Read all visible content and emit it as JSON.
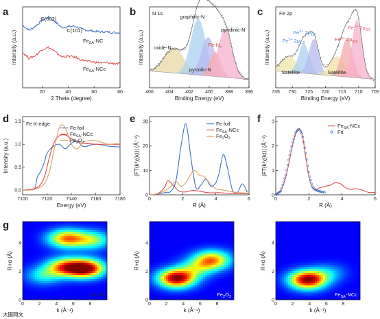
{
  "panels": {
    "a": {
      "letter": "a",
      "xlabel": "2 Theta (degree)",
      "ylabel": "Intensity (a.u.)",
      "xticks": [
        "20",
        "40",
        "60",
        "80"
      ],
      "peak_labels": [
        "C(002)",
        "C(101)"
      ],
      "legend": [
        {
          "name": "Fe",
          "sub": "SA",
          "suffix": "-NC",
          "color": "#3a6fc4"
        },
        {
          "name": "Fe",
          "sub": "SA",
          "suffix": "-NCc",
          "color": "#e04a4a"
        }
      ],
      "chart_data": {
        "type": "line",
        "xlim": [
          5,
          80
        ],
        "series": [
          {
            "name": "FeSA-NC",
            "x": [
              5,
              10,
              15,
              20,
              25,
              30,
              35,
              40,
              45,
              50,
              55,
              60,
              65,
              70,
              75,
              80
            ],
            "y": [
              0.85,
              0.78,
              0.84,
              0.92,
              0.96,
              0.9,
              0.82,
              0.83,
              0.84,
              0.8,
              0.78,
              0.77,
              0.76,
              0.76,
              0.75,
              0.75
            ]
          },
          {
            "name": "FeSA-NCc",
            "x": [
              5,
              10,
              15,
              20,
              25,
              30,
              35,
              40,
              45,
              50,
              55,
              60,
              65,
              70,
              75,
              80
            ],
            "y": [
              0.48,
              0.4,
              0.44,
              0.52,
              0.55,
              0.49,
              0.42,
              0.43,
              0.42,
              0.38,
              0.36,
              0.35,
              0.34,
              0.34,
              0.33,
              0.33
            ]
          }
        ]
      }
    },
    "b": {
      "letter": "b",
      "title": "N 1s",
      "xlabel": "Binding Energy (eV)",
      "ylabel": "Intensity (a.u.)",
      "xticks": [
        "406",
        "404",
        "402",
        "400",
        "398",
        "396"
      ],
      "labels": [
        {
          "text": "graphitic-N",
          "color": "#4a90d9"
        },
        {
          "text": "pyridinic-N",
          "color": "#e05a8a"
        },
        {
          "text": "oxide-N",
          "color": "#b8a040"
        },
        {
          "text": "Fe-N",
          "sub": "x",
          "color": "#d04040"
        },
        {
          "text": "pyrrolic-N",
          "color": "#6a70d0"
        }
      ],
      "chart_data": {
        "type": "area",
        "xlim": [
          406,
          396
        ],
        "components": [
          {
            "name": "oxide-N",
            "center": 403.5,
            "color": "#e8d9a0"
          },
          {
            "name": "graphitic-N",
            "center": 401.1,
            "color": "#a9d0f2"
          },
          {
            "name": "pyrrolic-N",
            "center": 400.1,
            "color": "#b7b9ee"
          },
          {
            "name": "Fe-Nx",
            "center": 399.4,
            "color": "#f4a9a9"
          },
          {
            "name": "pyridinic-N",
            "center": 398.4,
            "color": "#f7b0cc"
          }
        ]
      }
    },
    "c": {
      "letter": "c",
      "title": "Fe 2p",
      "xlabel": "Binding Energy (eV)",
      "ylabel": "Intensity (a.u.)",
      "xticks": [
        "735",
        "730",
        "725",
        "720",
        "715",
        "710",
        "705"
      ],
      "labels": [
        {
          "pre": "Fe",
          "sup": "3+",
          "mid": " 2p",
          "sub": "1/2",
          "color": "#4a90d9"
        },
        {
          "pre": "Fe",
          "sup": "2+",
          "mid": " 2p",
          "sub": "1/2",
          "color": "#4a90d9"
        },
        {
          "pre": "Fe",
          "sup": "3+",
          "mid": " 2p",
          "sub": "3/2",
          "color": "#d04040"
        },
        {
          "pre": "Fe",
          "sup": "2+",
          "mid": " 2p",
          "sub": "3/2",
          "color": "#e05a8a"
        },
        {
          "text": "Satellite",
          "color": "#c8a000"
        },
        {
          "text": "Satellite",
          "color": "#c8a000"
        }
      ],
      "chart_data": {
        "type": "area",
        "xlim": [
          735,
          705
        ],
        "components": [
          {
            "name": "Satellite",
            "center": 731.0,
            "color": "#efe3a8"
          },
          {
            "name": "Fe3+ 2p1/2",
            "center": 726.5,
            "color": "#a9d0f2"
          },
          {
            "name": "Fe2+ 2p1/2",
            "center": 723.5,
            "color": "#b7b9ee"
          },
          {
            "name": "Satellite",
            "center": 716.5,
            "color": "#f1e2a6"
          },
          {
            "name": "Fe3+ 2p3/2",
            "center": 713.5,
            "color": "#f4a9a9"
          },
          {
            "name": "Fe2+ 2p3/2",
            "center": 710.5,
            "color": "#f7b0cc"
          }
        ]
      }
    },
    "d": {
      "letter": "d",
      "title": "Fe K-edge",
      "xlabel": "Energy (eV)",
      "ylabel": "Intensity (a.u.)",
      "xticks": [
        "7100",
        "7120",
        "7140",
        "7160",
        "7180"
      ],
      "yticks": [
        "0.0",
        "0.5",
        "1.0",
        "1.5"
      ],
      "legend": [
        {
          "text": "Fe foil",
          "color": "#3a6fc4"
        },
        {
          "pre": "Fe",
          "sub": "SA",
          "post": "-NCc",
          "color": "#e04a4a"
        },
        {
          "pre": "Fe",
          "sub": "2",
          "post": "O",
          "sub2": "3",
          "color": "#d9a060"
        }
      ],
      "chart_data": {
        "type": "line",
        "xlim": [
          7100,
          7180
        ],
        "ylim": [
          -0.1,
          1.6
        ],
        "series": [
          {
            "name": "Fe foil",
            "x": [
              7100,
              7105,
              7110,
              7112,
              7115,
              7118,
              7120,
              7125,
              7130,
              7135,
              7140,
              7145,
              7150,
              7160,
              7170,
              7180
            ],
            "y": [
              0.0,
              0.01,
              0.05,
              0.28,
              0.42,
              0.62,
              0.8,
              0.95,
              1.0,
              0.9,
              1.02,
              1.07,
              0.95,
              1.0,
              0.96,
              0.94
            ]
          },
          {
            "name": "FeSA-NCc",
            "x": [
              7100,
              7105,
              7110,
              7114,
              7118,
              7122,
              7126,
              7130,
              7135,
              7140,
              7145,
              7150,
              7160,
              7170,
              7180
            ],
            "y": [
              0.0,
              0.01,
              0.04,
              0.1,
              0.3,
              0.72,
              1.05,
              1.18,
              1.2,
              1.12,
              1.05,
              1.02,
              1.0,
              1.0,
              0.99
            ]
          },
          {
            "name": "Fe2O3",
            "x": [
              7100,
              7105,
              7110,
              7114,
              7118,
              7122,
              7126,
              7130,
              7133,
              7136,
              7140,
              7145,
              7150,
              7160,
              7170,
              7180
            ],
            "y": [
              0.0,
              0.0,
              0.02,
              0.06,
              0.15,
              0.4,
              0.9,
              1.35,
              1.42,
              1.3,
              1.0,
              0.9,
              1.05,
              1.08,
              1.0,
              1.02
            ]
          }
        ]
      }
    },
    "e": {
      "letter": "e",
      "xlabel": "R (Å)",
      "ylabel": "|FT(k³χ(k))| (Å⁻⁴)",
      "xticks": [
        "0",
        "2",
        "4",
        "6"
      ],
      "yticks": [
        "0",
        "10",
        "20",
        "30"
      ],
      "legend": [
        {
          "text": "Fe foil",
          "color": "#3a6fc4"
        },
        {
          "pre": "Fe",
          "sub": "SA",
          "post": "-NCc",
          "color": "#e04a4a"
        },
        {
          "pre": "Fe",
          "sub": "2",
          "post": "O",
          "sub2": "3",
          "color": "#d9a060"
        }
      ],
      "chart_data": {
        "type": "line",
        "xlim": [
          0,
          6
        ],
        "ylim": [
          0,
          32
        ],
        "series": [
          {
            "name": "Fe foil",
            "x": [
              0,
              0.5,
              1.0,
              1.3,
              1.6,
              1.9,
              2.2,
              2.5,
              2.8,
              3.1,
              3.4,
              3.7,
              4.0,
              4.2,
              4.45,
              4.7,
              5.0,
              5.3,
              5.6,
              5.9
            ],
            "y": [
              0,
              0.3,
              1.0,
              1.5,
              6.0,
              20.0,
              29.0,
              15.0,
              3.0,
              4.0,
              6.5,
              3.5,
              5.0,
              9.0,
              16.5,
              11.0,
              2.0,
              1.0,
              4.5,
              1.0
            ]
          },
          {
            "name": "FeSA-NCc",
            "x": [
              0,
              0.5,
              0.9,
              1.1,
              1.4,
              1.8,
              2.2,
              2.6,
              3.0,
              3.4,
              3.8,
              4.2,
              4.6,
              5.0,
              5.5,
              6.0
            ],
            "y": [
              0,
              0.5,
              3.0,
              5.8,
              4.0,
              1.5,
              1.2,
              1.8,
              1.5,
              1.0,
              0.8,
              0.9,
              0.7,
              0.6,
              0.5,
              0.4
            ]
          },
          {
            "name": "Fe2O3",
            "x": [
              0,
              0.5,
              1.0,
              1.3,
              1.6,
              1.9,
              2.2,
              2.5,
              2.75,
              3.0,
              3.3,
              3.6,
              4.0,
              4.4,
              4.8,
              5.2,
              5.6,
              6.0
            ],
            "y": [
              0,
              0.5,
              2.0,
              3.5,
              5.5,
              3.5,
              5.0,
              8.5,
              10.0,
              8.0,
              7.5,
              5.0,
              2.5,
              2.0,
              1.5,
              1.0,
              0.8,
              0.5
            ]
          }
        ]
      }
    },
    "f": {
      "letter": "f",
      "xlabel": "R (Å)",
      "ylabel": "|FT(k³χ(k))| (Å⁻⁴)",
      "xticks": [
        "0",
        "2",
        "4",
        "6"
      ],
      "yticks": [
        "0",
        "1",
        "2",
        "3"
      ],
      "legend": [
        {
          "pre": "Fe",
          "sub": "SA",
          "post": "-NCc",
          "color": "#e04a4a"
        },
        {
          "text": "Fit",
          "color": "#3a6fc4"
        }
      ],
      "chart_data": {
        "type": "line",
        "xlim": [
          0,
          6
        ],
        "ylim": [
          0,
          3.2
        ],
        "series": [
          {
            "name": "FeSA-NCc",
            "x": [
              0,
              0.4,
              0.7,
              1.0,
              1.2,
              1.4,
              1.6,
              1.8,
              2.0,
              2.2,
              2.4,
              2.7,
              3.0,
              3.3,
              3.6,
              3.9,
              4.2,
              4.5,
              4.8,
              5.2,
              5.6,
              6.0
            ],
            "y": [
              0,
              0.3,
              1.0,
              2.0,
              2.5,
              2.72,
              2.45,
              1.6,
              0.75,
              0.3,
              0.2,
              0.3,
              0.35,
              0.4,
              0.5,
              0.45,
              0.3,
              0.22,
              0.25,
              0.2,
              0.1,
              0.1
            ]
          },
          {
            "name": "Fit",
            "x": [
              0,
              0.3,
              0.6,
              0.8,
              1.0,
              1.2,
              1.4,
              1.6,
              1.8,
              2.0,
              2.2,
              2.4,
              2.6,
              2.8,
              3.0
            ],
            "y": [
              0,
              0.15,
              0.8,
              1.5,
              2.1,
              2.55,
              2.7,
              2.45,
              1.7,
              0.85,
              0.35,
              0.2,
              0.15,
              0.12,
              0.1
            ]
          }
        ]
      }
    },
    "g": {
      "letter": "g",
      "xlabel": "k (Å⁻¹)",
      "ylabel": "R+α (Å)",
      "xticks": [
        "0",
        "2",
        "4",
        "6",
        "8"
      ],
      "yticks": [
        "0",
        "2",
        "4"
      ],
      "chart_data": {
        "type": "heatmap",
        "xlim": [
          0,
          10
        ],
        "ylim": [
          0,
          5.5
        ],
        "maps": [
          {
            "name": "Fe foil",
            "blobs": [
              {
                "k": 7.5,
                "r": 2.2,
                "amp": 1.0
              },
              {
                "k": 5.0,
                "r": 2.3,
                "amp": 0.7
              },
              {
                "k": 5.2,
                "r": 4.3,
                "amp": 0.7
              },
              {
                "k": 8.2,
                "r": 4.2,
                "amp": 0.45
              },
              {
                "k": 2.5,
                "r": 1.7,
                "amp": 0.3
              }
            ]
          },
          {
            "name": "Fe2O3",
            "blobs": [
              {
                "k": 3.2,
                "r": 1.5,
                "amp": 1.0
              },
              {
                "k": 7.4,
                "r": 2.8,
                "amp": 0.7
              },
              {
                "k": 5.5,
                "r": 2.2,
                "amp": 0.35
              }
            ]
          },
          {
            "name": "FeSA-NCc",
            "blobs": [
              {
                "k": 3.8,
                "r": 1.4,
                "amp": 1.0
              },
              {
                "k": 6.2,
                "r": 1.9,
                "amp": 0.2
              }
            ]
          }
        ]
      },
      "map_labels": [
        {
          "text": "Fe foil"
        },
        {
          "pre": "Fe",
          "sub": "2",
          "post": "O",
          "sub2": "3"
        },
        {
          "pre": "Fe",
          "sub": "SA",
          "post": "-NCc"
        }
      ]
    }
  },
  "watermark": "大国网文"
}
